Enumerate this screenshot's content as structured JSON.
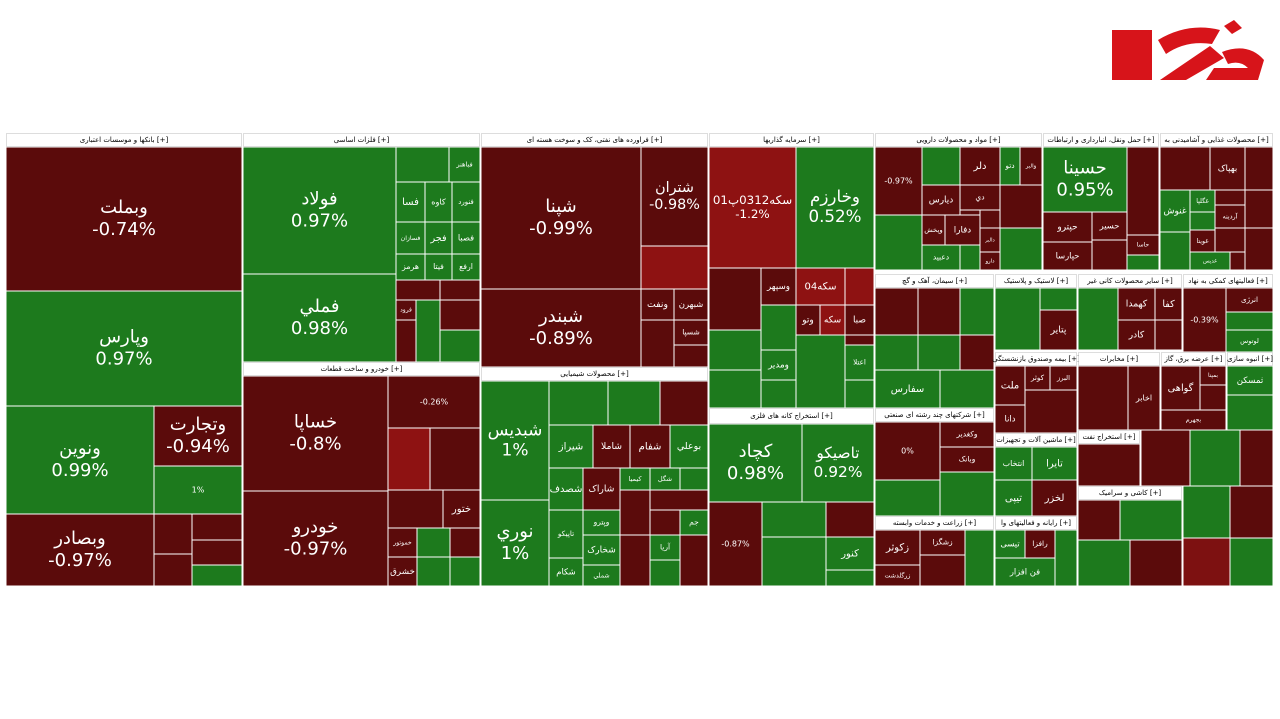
{
  "chart_data": {
    "type": "treemap",
    "sectors": [
      {
        "title": "بانکها و موسسات اعتباری [+]",
        "tiles": [
          {
            "name": "وبملت",
            "change": -0.74,
            "change_label": "-0.74%",
            "color": "#5b0b0b"
          },
          {
            "name": "وپارس",
            "change": 0.97,
            "change_label": "0.97%",
            "color": "#1d7a1d"
          },
          {
            "name": "ونوین",
            "change": 0.99,
            "change_label": "0.99%",
            "color": "#1d7a1d"
          },
          {
            "name": "وبصادر",
            "change": -0.97,
            "change_label": "-0.97%",
            "color": "#5b0b0b"
          },
          {
            "name": "وتجارت",
            "change": -0.94,
            "change_label": "-0.94%",
            "color": "#5b0b0b"
          },
          {
            "change": 1,
            "change_label": "1%",
            "color": "#1d7a1d"
          }
        ]
      },
      {
        "title": "فلزات اساسی [+]",
        "tiles": [
          {
            "name": "فولاد",
            "change": 0.97,
            "change_label": "0.97%",
            "color": "#1d7a1d"
          },
          {
            "name": "فملي",
            "change": 0.98,
            "change_label": "0.98%",
            "color": "#1d7a1d"
          },
          {
            "name": "فباهنر",
            "color": "#1d7a1d"
          },
          {
            "name": "فسا",
            "color": "#1d7a1d"
          },
          {
            "name": "کاوه",
            "color": "#1d7a1d"
          },
          {
            "name": "فنورد",
            "color": "#1d7a1d"
          },
          {
            "name": "فسازان",
            "color": "#1d7a1d"
          },
          {
            "name": "فجر",
            "color": "#1d7a1d"
          },
          {
            "name": "فصبا",
            "color": "#1d7a1d"
          },
          {
            "name": "هرمز",
            "color": "#1d7a1d"
          },
          {
            "name": "فیتا",
            "color": "#1d7a1d"
          },
          {
            "name": "ارفع",
            "color": "#1d7a1d"
          },
          {
            "name": "فرود",
            "color": "#5b0b0b"
          }
        ]
      },
      {
        "title": "خودرو و ساخت قطعات [+]",
        "tiles": [
          {
            "name": "خساپا",
            "change": -0.8,
            "change_label": "-0.8%",
            "color": "#5b0b0b"
          },
          {
            "name": "خودرو",
            "change": -0.97,
            "change_label": "-0.97%",
            "color": "#5b0b0b"
          },
          {
            "change": -0.26,
            "change_label": "-0.26%",
            "color": "#5b0b0b"
          },
          {
            "name": "ختور",
            "color": "#5b0b0b"
          },
          {
            "name": "خموتور",
            "color": "#5b0b0b"
          },
          {
            "name": "خشرق",
            "color": "#5b0b0b"
          }
        ]
      },
      {
        "title": "فراورده های نفتی، کک و سوخت هسته ای [+]",
        "tiles": [
          {
            "name": "شپنا",
            "change": -0.99,
            "change_label": "-0.99%",
            "color": "#5b0b0b"
          },
          {
            "name": "شبندر",
            "change": -0.89,
            "change_label": "-0.89%",
            "color": "#5b0b0b"
          },
          {
            "name": "شتران",
            "change": -0.98,
            "change_label": "-0.98%",
            "color": "#5b0b0b"
          },
          {
            "name": "ونفت",
            "color": "#5b0b0b"
          },
          {
            "name": "شبهرن",
            "color": "#5b0b0b"
          },
          {
            "name": "شسپا",
            "color": "#5b0b0b"
          }
        ]
      },
      {
        "title": "محصولات شیمیایی [+]",
        "tiles": [
          {
            "name": "شبدیس",
            "change": 1,
            "change_label": "1%",
            "color": "#1d7a1d"
          },
          {
            "name": "نوري",
            "change": 1,
            "change_label": "1%",
            "color": "#1d7a1d"
          },
          {
            "name": "شیراز",
            "color": "#1d7a1d"
          },
          {
            "name": "شاملا",
            "color": "#5b0b0b"
          },
          {
            "name": "شفام",
            "color": "#5b0b0b"
          },
          {
            "name": "بوعلي",
            "color": "#1d7a1d"
          },
          {
            "name": "شصدف",
            "color": "#1d7a1d"
          },
          {
            "name": "شاراک",
            "color": "#5b0b0b"
          },
          {
            "name": "کیمیا",
            "color": "#1d7a1d"
          },
          {
            "name": "شگل",
            "color": "#1d7a1d"
          },
          {
            "name": "تاپیکو",
            "color": "#1d7a1d"
          },
          {
            "name": "شکام",
            "color": "#1d7a1d"
          },
          {
            "name": "وپترو",
            "color": "#1d7a1d"
          },
          {
            "name": "شخارک",
            "color": "#1d7a1d"
          },
          {
            "name": "شملي",
            "color": "#1d7a1d"
          },
          {
            "name": "آریا",
            "color": "#1d7a1d"
          },
          {
            "name": "جم",
            "color": "#1d7a1d"
          }
        ]
      },
      {
        "title": "سرمایه گذاریها [+]",
        "tiles": [
          {
            "name": "سکه0312پ01",
            "change": -1.2,
            "change_label": "-1.2%",
            "color": "#8e1212"
          },
          {
            "name": "وخارزم",
            "change": 0.52,
            "change_label": "0.52%",
            "color": "#1d7a1d"
          },
          {
            "name": "وسپهر",
            "color": "#5b0b0b"
          },
          {
            "name": "سکه04",
            "color": "#8e1212"
          },
          {
            "name": "وتو",
            "color": "#5b0b0b"
          },
          {
            "name": "سکه",
            "color": "#8e1212"
          },
          {
            "name": "صبا",
            "color": "#5b0b0b"
          },
          {
            "name": "ومدیر",
            "color": "#1d7a1d"
          },
          {
            "name": "اعتلا",
            "color": "#1d7a1d"
          }
        ]
      },
      {
        "title": "استخراج کانه های فلزی [+]",
        "tiles": [
          {
            "name": "کچاد",
            "change": 0.98,
            "change_label": "0.98%",
            "color": "#1d7a1d"
          },
          {
            "name": "تاصیکو",
            "change": 0.92,
            "change_label": "0.92%",
            "color": "#1d7a1d"
          },
          {
            "change": -0.87,
            "change_label": "-0.87%",
            "color": "#5b0b0b"
          },
          {
            "name": "کنور",
            "color": "#1d7a1d"
          }
        ]
      },
      {
        "title": "مواد و محصولات دارویی [+]",
        "tiles": [
          {
            "change": -0.97,
            "change_label": "-0.97%",
            "color": "#5b0b0b"
          },
          {
            "name": "دلر",
            "color": "#5b0b0b"
          },
          {
            "name": "دتو",
            "color": "#1d7a1d"
          },
          {
            "name": "والبر",
            "color": "#5b0b0b"
          },
          {
            "name": "دیارس",
            "color": "#5b0b0b"
          },
          {
            "name": "دي",
            "color": "#5b0b0b"
          },
          {
            "name": "دفارا",
            "color": "#5b0b0b"
          },
          {
            "name": "وپخش",
            "color": "#5b0b0b"
          },
          {
            "name": "دعبید",
            "color": "#1d7a1d"
          },
          {
            "name": "دالبر",
            "color": "#5b0b0b"
          },
          {
            "name": "دارو",
            "color": "#5b0b0b"
          }
        ]
      },
      {
        "title": "حمل ونقل، انبارداری و ارتباطات [+]",
        "tiles": [
          {
            "name": "حسینا",
            "change": 0.95,
            "change_label": "0.95%",
            "color": "#1d7a1d"
          },
          {
            "name": "حپترو",
            "color": "#5b0b0b"
          },
          {
            "name": "حسیر",
            "color": "#5b0b0b"
          },
          {
            "name": "حپارسا",
            "color": "#5b0b0b"
          },
          {
            "name": "حاسا",
            "color": "#5b0b0b"
          }
        ]
      },
      {
        "title": "محصولات غذایی و آشامیدنی به [+]",
        "tiles": [
          {
            "name": "بهپاک",
            "color": "#5b0b0b"
          },
          {
            "name": "غنوش",
            "color": "#1d7a1d"
          },
          {
            "name": "غگلپا",
            "color": "#1d7a1d"
          },
          {
            "name": "آردینه",
            "color": "#5b0b0b"
          },
          {
            "name": "غویتا",
            "color": "#5b0b0b"
          },
          {
            "name": "غدیس",
            "color": "#1d7a1d"
          }
        ]
      },
      {
        "title": "سیمان، آهک و گچ [+]",
        "tiles": [
          {
            "name": "سفارس",
            "color": "#1d7a1d"
          }
        ]
      },
      {
        "title": "لاستیک و پلاستیک [+]",
        "tiles": [
          {
            "name": "پتایر",
            "color": "#5b0b0b"
          }
        ]
      },
      {
        "title": "سایر محصولات کانی غیر [+]",
        "tiles": [
          {
            "name": "کهمدا",
            "color": "#5b0b0b"
          },
          {
            "name": "کادر",
            "color": "#5b0b0b"
          },
          {
            "name": "کفا",
            "color": "#5b0b0b"
          }
        ]
      },
      {
        "title": "فعالیتهای کمکی به نهاد [+]",
        "tiles": [
          {
            "change": -0.39,
            "change_label": "-0.39%",
            "color": "#5b0b0b"
          },
          {
            "name": "انرژی",
            "color": "#5b0b0b"
          },
          {
            "name": "لوتوس",
            "color": "#1d7a1d"
          }
        ]
      },
      {
        "title": "شرکتهای چند رشته ای صنعتی [+]",
        "tiles": [
          {
            "change": 0,
            "change_label": "0%",
            "color": "#5b0b0b"
          },
          {
            "name": "وکغدیر",
            "color": "#5b0b0b"
          },
          {
            "name": "وبانک",
            "color": "#5b0b0b"
          }
        ]
      },
      {
        "title": "زراعت و خدمات وابسته [+]",
        "tiles": [
          {
            "name": "زکوثر",
            "color": "#5b0b0b"
          },
          {
            "name": "زرگلدشت",
            "color": "#5b0b0b"
          },
          {
            "name": "زشگزا",
            "color": "#5b0b0b"
          }
        ]
      },
      {
        "title": "بیمه وصندوق بازنشستگی [+]",
        "tiles": [
          {
            "name": "البرز",
            "color": "#5b0b0b"
          },
          {
            "name": "کوثر",
            "color": "#5b0b0b"
          },
          {
            "name": "ملت",
            "color": "#5b0b0b"
          },
          {
            "name": "دانا",
            "color": "#5b0b0b"
          }
        ]
      },
      {
        "title": "ماشین آلات و تجهیزات [+]",
        "tiles": [
          {
            "name": "انتخاب",
            "color": "#1d7a1d"
          },
          {
            "name": "تایرا",
            "color": "#1d7a1d"
          },
          {
            "name": "تیپی",
            "color": "#1d7a1d"
          },
          {
            "name": "لخزر",
            "color": "#5b0b0b"
          }
        ]
      },
      {
        "title": "رایانه و فعالیتهای وا [+]",
        "tiles": [
          {
            "name": "تیسی",
            "color": "#1d7a1d"
          },
          {
            "name": "رافزا",
            "color": "#5b0b0b"
          },
          {
            "name": "فن افزار",
            "color": "#1d7a1d"
          }
        ]
      },
      {
        "title": "مخابرات [+]",
        "tiles": [
          {
            "name": "اخابر",
            "color": "#5b0b0b"
          }
        ]
      },
      {
        "title": "عرضه برق، گاز [+]",
        "tiles": [
          {
            "name": "بمپنا",
            "color": "#5b0b0b"
          },
          {
            "name": "گواهی",
            "color": "#5b0b0b"
          },
          {
            "name": "بجهرم",
            "color": "#5b0b0b"
          }
        ]
      },
      {
        "title": "انبوه سازی [+]",
        "tiles": [
          {
            "name": "ثمسکن",
            "color": "#1d7a1d"
          }
        ]
      },
      {
        "title": "استخراج نفت [+]",
        "tiles": []
      },
      {
        "title": "کاشی و سرامیک [+]",
        "tiles": []
      }
    ]
  }
}
